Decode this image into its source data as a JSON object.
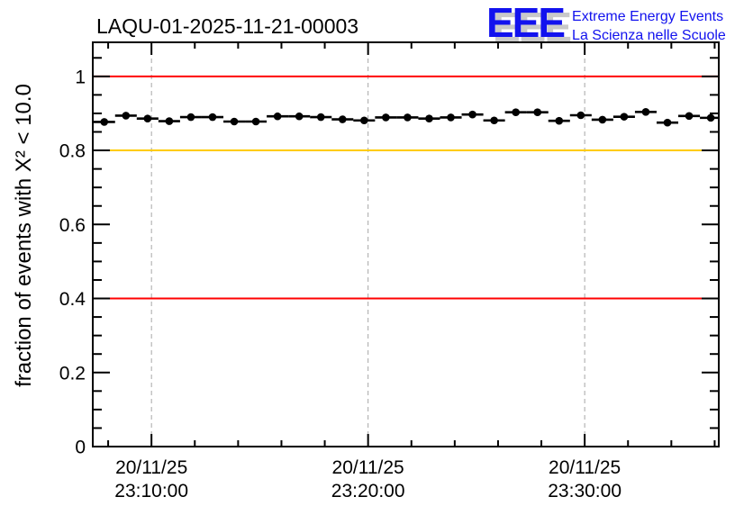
{
  "header": {
    "title": "LAQU-01-2025-11-21-00003",
    "logo": {
      "acronym": "EEE",
      "line1": "Extreme Energy Events",
      "line2": "La Scienza nelle Scuole",
      "color": "#1212ee",
      "shadow_color": "#c9c9c9"
    }
  },
  "chart_data": {
    "type": "scatter",
    "title": "LAQU-01-2025-11-21-00003",
    "ylabel": "fraction of events with X² < 10.0",
    "xlabel": "",
    "ylim": [
      0,
      1.092
    ],
    "xlim_minutes_after_2300": [
      7.29,
      36.19
    ],
    "grid": "vertical-dashed-at-major-x-ticks",
    "grid_color": "#a6a6a6",
    "x_axis": {
      "major_ticks": [
        {
          "minutes": 10,
          "date": "20/11/25",
          "time": "23:10:00"
        },
        {
          "minutes": 20,
          "date": "20/11/25",
          "time": "23:20:00"
        },
        {
          "minutes": 30,
          "date": "20/11/25",
          "time": "23:30:00"
        }
      ],
      "minor_tick_step_minutes": 2
    },
    "y_axis": {
      "major_ticks": [
        {
          "value": 0,
          "label": "0"
        },
        {
          "value": 0.2,
          "label": "0.2"
        },
        {
          "value": 0.4,
          "label": "0.4"
        },
        {
          "value": 0.6,
          "label": "0.6"
        },
        {
          "value": 0.8,
          "label": "0.8"
        },
        {
          "value": 1,
          "label": "1"
        }
      ],
      "minor_tick_step": 0.05
    },
    "reference_lines": [
      {
        "y": 1.0,
        "color": "#ff0000"
      },
      {
        "y": 0.8,
        "color": "#ffcc00"
      },
      {
        "y": 0.4,
        "color": "#ff0000"
      }
    ],
    "series": [
      {
        "name": "fraction-of-good-events",
        "marker": "filled-circle",
        "color": "#000000",
        "x_bin_halfwidth_minutes": 0.5,
        "x_minutes_after_2300": [
          7.82,
          8.82,
          9.82,
          10.82,
          11.82,
          12.82,
          13.82,
          14.82,
          15.82,
          16.82,
          17.82,
          18.82,
          19.82,
          20.82,
          21.82,
          22.82,
          23.82,
          24.82,
          25.82,
          26.82,
          27.82,
          28.82,
          29.82,
          30.82,
          31.82,
          32.82,
          33.82,
          34.82,
          35.82
        ],
        "values": [
          0.877,
          0.894,
          0.886,
          0.879,
          0.89,
          0.89,
          0.878,
          0.878,
          0.892,
          0.892,
          0.89,
          0.884,
          0.881,
          0.889,
          0.889,
          0.886,
          0.889,
          0.897,
          0.881,
          0.903,
          0.903,
          0.88,
          0.895,
          0.883,
          0.891,
          0.904,
          0.875,
          0.893,
          0.888
        ]
      }
    ]
  }
}
